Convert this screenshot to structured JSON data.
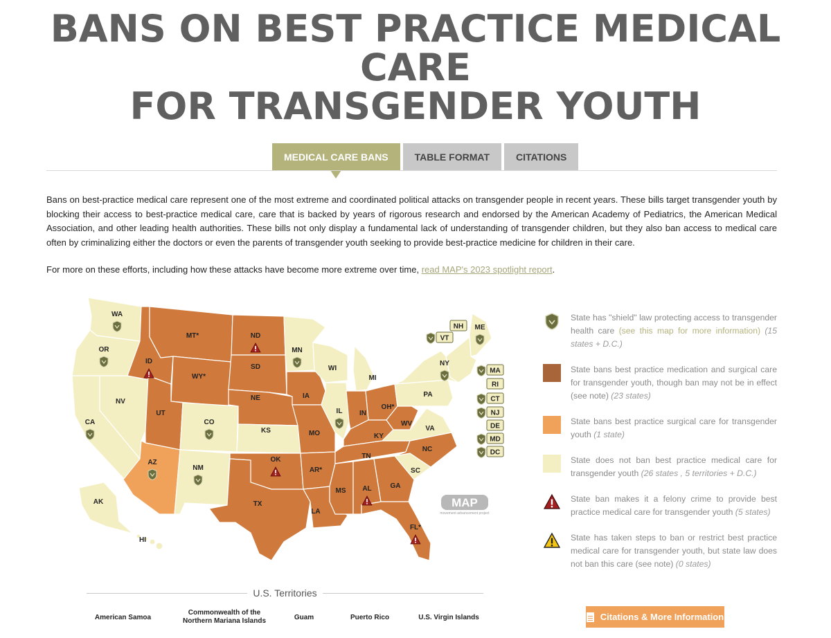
{
  "title": {
    "line1": "BANS ON BEST PRACTICE MEDICAL CARE",
    "line2": "FOR TRANSGENDER YOUTH"
  },
  "tabs": [
    {
      "label": "MEDICAL CARE BANS",
      "active": true
    },
    {
      "label": "TABLE FORMAT",
      "active": false
    },
    {
      "label": "CITATIONS",
      "active": false
    }
  ],
  "intro": "Bans on best-practice medical care represent one of the most extreme and coordinated political attacks on transgender people in recent years. These bills target transgender youth by blocking their access to best-practice medical care, care that is backed by years of rigorous research and endorsed by the American Academy of Pediatrics, the American Medical Association, and other leading health authorities. These bills not only display a fundamental lack of understanding of transgender children, but they also ban access to medical care often by criminalizing either the doctors or even the parents of transgender youth seeking to provide best-practice medicine for children in their care.",
  "more": {
    "prefix": "For more on these efforts, including how these attacks have become more extreme over time, ",
    "link": "read MAP's 2023 spotlight report",
    "suffix": "."
  },
  "colors": {
    "full_ban": "#cf7a3c",
    "surgical_ban": "#f0a25b",
    "no_ban": "#f4efc3",
    "tab_active": "#b4b37c",
    "shield": "#6b6e3e",
    "felony": "#a2201f",
    "caution": "#f3c515"
  },
  "legend": [
    {
      "icon": "shield-icon",
      "text": "State has \"shield\" law protecting access to transgender health care",
      "link": "(see this map for more information)",
      "count": "(15 states + D.C.)"
    },
    {
      "icon": "swatch-full-ban",
      "text": "State bans best practice medication and surgical care for transgender youth, though ban may not be in effect (see note)",
      "count": "(23 states)"
    },
    {
      "icon": "swatch-surgical-ban",
      "text": "State bans best practice surgical care for transgender youth",
      "count": "(1 state)"
    },
    {
      "icon": "swatch-no-ban",
      "text": "State does not ban best practice medical care for transgender youth",
      "count": "(26 states , 5 territories + D.C.)"
    },
    {
      "icon": "felony-icon",
      "text": "State ban makes it a felony crime to provide best practice medical care for transgender youth",
      "count": "(5 states)"
    },
    {
      "icon": "warning-icon",
      "text": "State has taken steps to ban or restrict best practice medical care for transgender youth, but state law does not ban this care (see note)",
      "count": "(0 states)"
    }
  ],
  "map": {
    "watermark": "MAP",
    "watermark_sub": "movement advancement project",
    "states": [
      {
        "abbr": "WA",
        "status": "none",
        "shield": true
      },
      {
        "abbr": "OR",
        "status": "none",
        "shield": true
      },
      {
        "abbr": "CA",
        "status": "none",
        "shield": true
      },
      {
        "abbr": "NV",
        "status": "none"
      },
      {
        "abbr": "ID",
        "status": "full",
        "felony": true
      },
      {
        "abbr": "MT*",
        "status": "full"
      },
      {
        "abbr": "WY*",
        "status": "full"
      },
      {
        "abbr": "UT",
        "status": "full"
      },
      {
        "abbr": "AZ",
        "status": "surgical",
        "shield": true
      },
      {
        "abbr": "CO",
        "status": "none",
        "shield": true
      },
      {
        "abbr": "NM",
        "status": "none",
        "shield": true
      },
      {
        "abbr": "ND",
        "status": "full",
        "felony": true
      },
      {
        "abbr": "SD",
        "status": "full"
      },
      {
        "abbr": "NE",
        "status": "full"
      },
      {
        "abbr": "KS",
        "status": "none"
      },
      {
        "abbr": "OK",
        "status": "full",
        "felony": true
      },
      {
        "abbr": "TX",
        "status": "full"
      },
      {
        "abbr": "MN",
        "status": "none",
        "shield": true
      },
      {
        "abbr": "IA",
        "status": "full"
      },
      {
        "abbr": "MO",
        "status": "full"
      },
      {
        "abbr": "AR*",
        "status": "full"
      },
      {
        "abbr": "LA",
        "status": "full"
      },
      {
        "abbr": "WI",
        "status": "none"
      },
      {
        "abbr": "IL",
        "status": "none",
        "shield": true
      },
      {
        "abbr": "MI",
        "status": "none"
      },
      {
        "abbr": "IN",
        "status": "full"
      },
      {
        "abbr": "OH*",
        "status": "full"
      },
      {
        "abbr": "KY",
        "status": "full"
      },
      {
        "abbr": "TN",
        "status": "full"
      },
      {
        "abbr": "MS",
        "status": "full"
      },
      {
        "abbr": "AL",
        "status": "full",
        "felony": true
      },
      {
        "abbr": "GA",
        "status": "full"
      },
      {
        "abbr": "FL*",
        "status": "full",
        "felony": true
      },
      {
        "abbr": "SC",
        "status": "none"
      },
      {
        "abbr": "NC",
        "status": "full"
      },
      {
        "abbr": "VA",
        "status": "none"
      },
      {
        "abbr": "WV",
        "status": "full"
      },
      {
        "abbr": "PA",
        "status": "none"
      },
      {
        "abbr": "NY",
        "status": "none",
        "shield": true
      },
      {
        "abbr": "ME",
        "status": "none",
        "shield": true
      },
      {
        "abbr": "AK",
        "status": "none"
      },
      {
        "abbr": "HI",
        "status": "none"
      }
    ],
    "callouts": [
      {
        "abbr": "NH",
        "shield": false
      },
      {
        "abbr": "VT",
        "shield": true
      },
      {
        "abbr": "MA",
        "shield": true
      },
      {
        "abbr": "RI",
        "shield": false
      },
      {
        "abbr": "CT",
        "shield": true
      },
      {
        "abbr": "NJ",
        "shield": true
      },
      {
        "abbr": "DE",
        "shield": false
      },
      {
        "abbr": "MD",
        "shield": true
      },
      {
        "abbr": "DC",
        "shield": true
      }
    ]
  },
  "territories": {
    "heading": "U.S. Territories",
    "items": [
      "American Samoa",
      "Commonwealth of the Northern Mariana Islands",
      "Guam",
      "Puerto Rico",
      "U.S. Virgin Islands"
    ]
  },
  "citations_button": "Citations & More Information"
}
